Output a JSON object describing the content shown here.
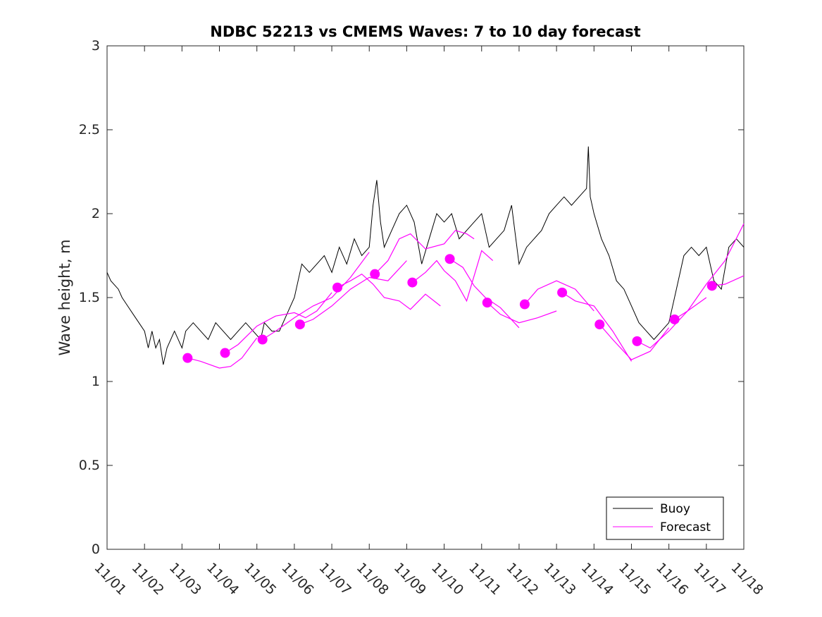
{
  "chart_data": {
    "type": "line",
    "title": "NDBC 52213 vs CMEMS Waves: 7 to 10 day forecast",
    "xlabel": "",
    "ylabel": "Wave height, m",
    "xlim": [
      0,
      17
    ],
    "ylim": [
      0,
      3
    ],
    "x_tick_labels": [
      "11/01",
      "11/02",
      "11/03",
      "11/04",
      "11/05",
      "11/06",
      "11/07",
      "11/08",
      "11/09",
      "11/10",
      "11/11",
      "11/12",
      "11/13",
      "11/14",
      "11/15",
      "11/16",
      "11/17",
      "11/18"
    ],
    "y_ticks": [
      0,
      0.5,
      1,
      1.5,
      2,
      2.5,
      3
    ],
    "y_tick_labels": [
      "0",
      "0.5",
      "1",
      "1.5",
      "2",
      "2.5",
      "3"
    ],
    "legend": [
      {
        "name": "Buoy",
        "color": "#000000"
      },
      {
        "name": "Forecast",
        "color": "#ff00ff"
      }
    ],
    "legend_position": "bottom-right",
    "colors": {
      "buoy": "#000000",
      "forecast": "#ff00ff"
    },
    "buoy": {
      "name": "Buoy",
      "x": [
        0,
        0.1,
        0.3,
        0.4,
        0.55,
        0.7,
        0.85,
        1.0,
        1.1,
        1.2,
        1.3,
        1.4,
        1.5,
        1.6,
        1.8,
        2.0,
        2.1,
        2.3,
        2.5,
        2.7,
        2.9,
        3.1,
        3.3,
        3.5,
        3.7,
        3.9,
        4.1,
        4.2,
        4.4,
        4.6,
        4.8,
        5.0,
        5.1,
        5.2,
        5.4,
        5.6,
        5.8,
        6.0,
        6.2,
        6.4,
        6.6,
        6.8,
        7.0,
        7.1,
        7.2,
        7.3,
        7.4,
        7.6,
        7.8,
        8.0,
        8.2,
        8.4,
        8.6,
        8.8,
        9.0,
        9.2,
        9.4,
        9.6,
        9.8,
        10.0,
        10.2,
        10.4,
        10.6,
        10.8,
        11.0,
        11.2,
        11.4,
        11.6,
        11.8,
        12.0,
        12.2,
        12.4,
        12.6,
        12.8,
        12.85,
        12.9,
        13.0,
        13.2,
        13.4,
        13.6,
        13.8,
        14.0,
        14.2,
        14.4,
        14.6,
        14.8,
        15.0,
        15.2,
        15.4,
        15.6,
        15.8,
        16.0,
        16.2,
        16.4,
        16.6,
        16.8,
        17.0
      ],
      "y": [
        1.65,
        1.6,
        1.55,
        1.5,
        1.45,
        1.4,
        1.35,
        1.3,
        1.2,
        1.3,
        1.2,
        1.25,
        1.1,
        1.2,
        1.3,
        1.2,
        1.3,
        1.35,
        1.3,
        1.25,
        1.35,
        1.3,
        1.25,
        1.3,
        1.35,
        1.3,
        1.25,
        1.35,
        1.3,
        1.3,
        1.4,
        1.5,
        1.6,
        1.7,
        1.65,
        1.7,
        1.75,
        1.65,
        1.8,
        1.7,
        1.85,
        1.75,
        1.8,
        2.05,
        2.2,
        1.95,
        1.8,
        1.9,
        2.0,
        2.05,
        1.95,
        1.7,
        1.85,
        2.0,
        1.95,
        2.0,
        1.85,
        1.9,
        1.95,
        2.0,
        1.8,
        1.85,
        1.9,
        2.05,
        1.7,
        1.8,
        1.85,
        1.9,
        2.0,
        2.05,
        2.1,
        2.05,
        2.1,
        2.15,
        2.4,
        2.1,
        2.0,
        1.85,
        1.75,
        1.6,
        1.55,
        1.45,
        1.35,
        1.3,
        1.25,
        1.3,
        1.35,
        1.55,
        1.75,
        1.8,
        1.75,
        1.8,
        1.6,
        1.55,
        1.8,
        1.85,
        1.8
      ]
    },
    "forecast_segments": [
      {
        "x": [
          2.15,
          2.5,
          3.0,
          3.3,
          3.6,
          4.0
        ],
        "y": [
          1.14,
          1.12,
          1.08,
          1.09,
          1.14,
          1.26
        ]
      },
      {
        "x": [
          3.15,
          3.5,
          4.0,
          4.5,
          5.0,
          5.3,
          5.6,
          6.0
        ],
        "y": [
          1.17,
          1.22,
          1.33,
          1.39,
          1.41,
          1.38,
          1.42,
          1.53
        ]
      },
      {
        "x": [
          4.15,
          4.5,
          5.0,
          5.5,
          6.0,
          6.5,
          7.0
        ],
        "y": [
          1.25,
          1.3,
          1.38,
          1.45,
          1.5,
          1.62,
          1.77
        ]
      },
      {
        "x": [
          5.15,
          5.5,
          6.0,
          6.5,
          7.0,
          7.5,
          8.0
        ],
        "y": [
          1.34,
          1.37,
          1.45,
          1.55,
          1.62,
          1.6,
          1.72
        ]
      },
      {
        "x": [
          6.15,
          6.5,
          6.8,
          7.1,
          7.4,
          7.8,
          8.1,
          8.5,
          8.9
        ],
        "y": [
          1.56,
          1.6,
          1.64,
          1.58,
          1.5,
          1.48,
          1.43,
          1.52,
          1.45
        ]
      },
      {
        "x": [
          7.15,
          7.5,
          7.8,
          8.1,
          8.5,
          9.0,
          9.3,
          9.6,
          9.8
        ],
        "y": [
          1.64,
          1.72,
          1.85,
          1.88,
          1.79,
          1.82,
          1.9,
          1.88,
          1.85
        ]
      },
      {
        "x": [
          8.15,
          8.5,
          8.8,
          9.0,
          9.3,
          9.6,
          10.0,
          10.3
        ],
        "y": [
          1.59,
          1.65,
          1.72,
          1.66,
          1.6,
          1.48,
          1.78,
          1.72
        ]
      },
      {
        "x": [
          9.15,
          9.5,
          9.8,
          10.1,
          10.5,
          11.0
        ],
        "y": [
          1.73,
          1.68,
          1.57,
          1.5,
          1.44,
          1.32
        ]
      },
      {
        "x": [
          10.15,
          10.5,
          11.0,
          11.5,
          12.0
        ],
        "y": [
          1.47,
          1.4,
          1.35,
          1.38,
          1.42
        ]
      },
      {
        "x": [
          11.15,
          11.5,
          12.0,
          12.5,
          13.0
        ],
        "y": [
          1.46,
          1.55,
          1.6,
          1.55,
          1.42
        ]
      },
      {
        "x": [
          12.15,
          12.5,
          13.0,
          13.5,
          14.0
        ],
        "y": [
          1.53,
          1.48,
          1.45,
          1.3,
          1.12
        ]
      },
      {
        "x": [
          13.15,
          13.5,
          14.0,
          14.5,
          15.0
        ],
        "y": [
          1.34,
          1.25,
          1.13,
          1.18,
          1.32
        ]
      },
      {
        "x": [
          14.15,
          14.5,
          15.0,
          15.5,
          16.0
        ],
        "y": [
          1.24,
          1.2,
          1.3,
          1.42,
          1.5
        ]
      },
      {
        "x": [
          15.15,
          15.5,
          16.0,
          16.5,
          17.0
        ],
        "y": [
          1.37,
          1.42,
          1.58,
          1.72,
          1.94
        ]
      },
      {
        "x": [
          16.15,
          16.5,
          17.0
        ],
        "y": [
          1.57,
          1.58,
          1.63
        ]
      }
    ],
    "forecast_points": {
      "x": [
        2.15,
        3.15,
        4.15,
        5.15,
        6.15,
        7.15,
        8.15,
        9.15,
        10.15,
        11.15,
        12.15,
        13.15,
        14.15,
        15.15,
        16.15
      ],
      "y": [
        1.14,
        1.17,
        1.25,
        1.34,
        1.56,
        1.64,
        1.59,
        1.73,
        1.47,
        1.46,
        1.53,
        1.34,
        1.24,
        1.37,
        1.57
      ]
    }
  }
}
